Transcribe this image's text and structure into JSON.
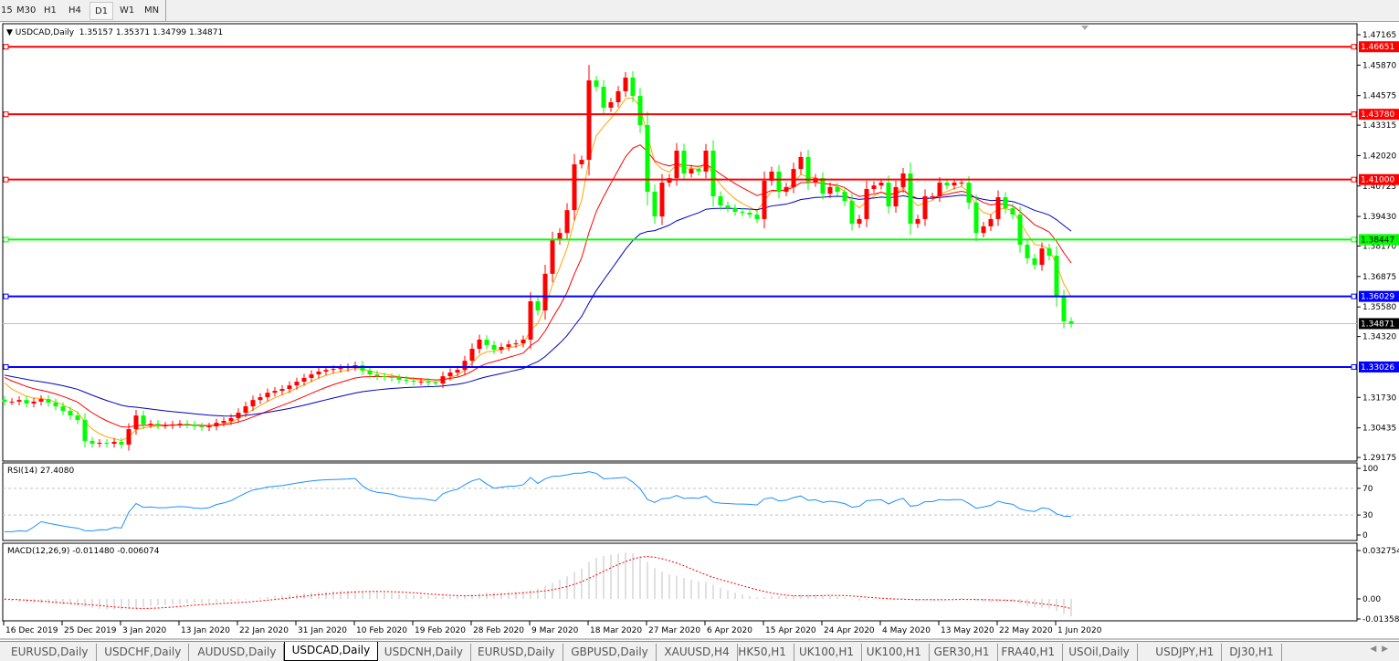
{
  "timeframes": [
    {
      "label": "15"
    },
    {
      "label": "M30"
    },
    {
      "label": "H1"
    },
    {
      "label": "H4"
    },
    {
      "label": "D1",
      "active": true
    },
    {
      "label": "W1"
    },
    {
      "label": "MN"
    }
  ],
  "chart": {
    "symbol_label": "USDCAD,Daily",
    "ohlc_label": "1.35157 1.35371 1.34799 1.34871",
    "current_price": "1.34871",
    "price_ticks": [
      "1.47165",
      "1.45870",
      "1.44575",
      "1.43315",
      "1.42020",
      "1.40725",
      "1.39430",
      "1.38170",
      "1.36875",
      "1.35580",
      "1.34320",
      "1.31730",
      "1.30435",
      "1.29175"
    ],
    "hlines": [
      {
        "price": "1.46651",
        "color": "#ff0000"
      },
      {
        "price": "1.43780",
        "color": "#ff0000"
      },
      {
        "price": "1.41000",
        "color": "#ff0000"
      },
      {
        "price": "1.38447",
        "color": "#00ff00"
      },
      {
        "price": "1.36029",
        "color": "#0000ff"
      },
      {
        "price": "1.33026",
        "color": "#0000ff"
      }
    ],
    "colors": {
      "bull": "#ff0000",
      "bear": "#00ff00",
      "ma_fast": "#ffa500",
      "ma_mid": "#ff0000",
      "ma_slow": "#0000c0",
      "rsi": "#1e90ff",
      "macd_signal": "#ff0000",
      "macd_hist": "#c0c0c0"
    },
    "closes": [
      1.3155,
      1.3155,
      1.3162,
      1.3147,
      1.3155,
      1.3166,
      1.3151,
      1.3135,
      1.3116,
      1.3096,
      1.3077,
      1.2988,
      1.2976,
      1.298,
      1.2976,
      1.2984,
      1.2972,
      1.3038,
      1.3096,
      1.3058,
      1.3061,
      1.3054,
      1.3054,
      1.3058,
      1.3061,
      1.3058,
      1.305,
      1.3046,
      1.305,
      1.3065,
      1.3073,
      1.3085,
      1.3108,
      1.3135,
      1.3162,
      1.3174,
      1.3193,
      1.3201,
      1.3209,
      1.3224,
      1.324,
      1.3256,
      1.3271,
      1.3283,
      1.329,
      1.3294,
      1.3298,
      1.3302,
      1.331,
      1.3287,
      1.3271,
      1.3263,
      1.326,
      1.3256,
      1.3248,
      1.3244,
      1.324,
      1.324,
      1.3236,
      1.3232,
      1.3263,
      1.3279,
      1.329,
      1.3329,
      1.338,
      1.3419,
      1.3396,
      1.3376,
      1.3388,
      1.3399,
      1.3403,
      1.3419,
      1.3582,
      1.3543,
      1.3699,
      1.3842,
      1.3873,
      1.397,
      1.4165,
      1.4184,
      1.4522,
      1.4495,
      1.4406,
      1.4429,
      1.4476,
      1.4534,
      1.4456,
      1.4332,
      1.4048,
      1.3943,
      1.4087,
      1.4106,
      1.4223,
      1.4126,
      1.4145,
      1.4134,
      1.4223,
      1.4029,
      1.399,
      1.3978,
      1.3963,
      1.3959,
      1.3951,
      1.3932,
      1.4095,
      1.4134,
      1.4048,
      1.4068,
      1.4145,
      1.4196,
      1.4087,
      1.4106,
      1.404,
      1.4068,
      1.4048,
      1.4009,
      1.3912,
      1.3932,
      1.406,
      1.4075,
      1.4087,
      1.3986,
      1.4068,
      1.4126,
      1.3912,
      1.3932,
      1.4029,
      1.4029,
      1.4087,
      1.4075,
      1.4087,
      1.4087,
      1.4002,
      1.3873,
      1.3901,
      1.3932,
      1.4025,
      1.3978,
      1.3951,
      1.3823,
      1.3765,
      1.3737,
      1.3807,
      1.3776,
      1.3601,
      1.3497,
      1.34871
    ]
  },
  "rsi": {
    "label": "RSI(14) 27.4080",
    "ticks": [
      "100",
      "70",
      "30",
      "0"
    ]
  },
  "macd": {
    "label": "MACD(12,26,9) -0.011480 -0.006074",
    "ticks": [
      "0.032754",
      "0.00",
      "-0.013586"
    ]
  },
  "date_axis": [
    "16 Dec 2019",
    "25 Dec 2019",
    "3 Jan 2020",
    "13 Jan 2020",
    "22 Jan 2020",
    "31 Jan 2020",
    "10 Feb 2020",
    "19 Feb 2020",
    "28 Feb 2020",
    "9 Mar 2020",
    "18 Mar 2020",
    "27 Mar 2020",
    "6 Apr 2020",
    "15 Apr 2020",
    "24 Apr 2020",
    "4 May 2020",
    "13 May 2020",
    "22 May 2020",
    "1 Jun 2020"
  ],
  "tabs": [
    {
      "label": "EURUSD,Daily"
    },
    {
      "label": "USDCHF,Daily"
    },
    {
      "label": "AUDUSD,Daily"
    },
    {
      "label": "USDCAD,Daily",
      "active": true
    },
    {
      "label": "USDCNH,Daily"
    },
    {
      "label": "EURUSD,Daily"
    },
    {
      "label": "GBPUSD,Daily"
    },
    {
      "label": "XAUUSD,H4"
    },
    {
      "label": "HK50,H1"
    },
    {
      "label": "UK100,H1"
    },
    {
      "label": "UK100,H1"
    },
    {
      "label": "GER30,H1"
    },
    {
      "label": "FRA40,H1"
    },
    {
      "label": "USOil,Daily"
    },
    {
      "label": "USDJPY,H1"
    },
    {
      "label": "DJ30,H1"
    }
  ]
}
